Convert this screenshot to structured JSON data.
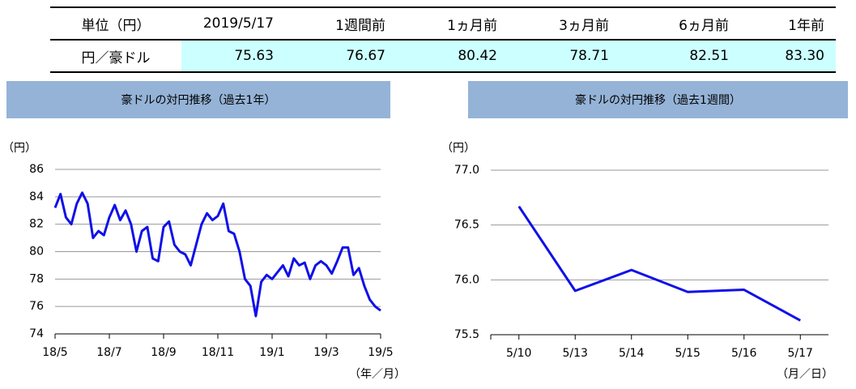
{
  "table": {
    "header": [
      "単位（円）",
      "2019/5/17",
      "1週間前",
      "1ヵ月前",
      "3ヵ月前",
      "6ヵ月前",
      "1年前"
    ],
    "rows": [
      [
        "円／豪ドル",
        "75.63",
        "76.67",
        "80.42",
        "78.71",
        "82.51",
        "83.30"
      ]
    ]
  },
  "chart_data": [
    {
      "type": "line",
      "title": "豪ドルの対円推移（過去1年）",
      "y_label": "（円）",
      "x_label": "（年／月）",
      "color": "#1010e8",
      "categories": [
        "18/5",
        null,
        null,
        null,
        null,
        null,
        null,
        null,
        null,
        null,
        "18/7",
        null,
        null,
        null,
        null,
        null,
        null,
        null,
        null,
        null,
        "18/9",
        null,
        null,
        null,
        null,
        null,
        null,
        null,
        null,
        null,
        "18/11",
        null,
        null,
        null,
        null,
        null,
        null,
        null,
        null,
        null,
        "19/1",
        null,
        null,
        null,
        null,
        null,
        null,
        null,
        null,
        null,
        "19/3",
        null,
        null,
        null,
        null,
        null,
        null,
        null,
        null,
        null,
        "19/5"
      ],
      "values": [
        83.2,
        84.2,
        82.5,
        82.0,
        83.5,
        84.3,
        83.5,
        81.0,
        81.5,
        81.2,
        82.5,
        83.4,
        82.3,
        83.0,
        82.0,
        80.0,
        81.5,
        81.8,
        79.5,
        79.3,
        81.8,
        82.2,
        80.5,
        80.0,
        79.8,
        79.0,
        80.5,
        82.0,
        82.8,
        82.3,
        82.6,
        83.5,
        81.5,
        81.3,
        80.0,
        78.0,
        77.5,
        75.3,
        77.8,
        78.3,
        78.0,
        78.5,
        79.0,
        78.2,
        79.5,
        79.0,
        79.2,
        78.0,
        79.0,
        79.3,
        79.0,
        78.4,
        79.3,
        80.3,
        80.3,
        78.3,
        78.8,
        77.5,
        76.5,
        76.0,
        75.7
      ],
      "ylim": [
        74,
        86
      ],
      "yticks": [
        74,
        76,
        78,
        80,
        82,
        84,
        86
      ],
      "grid": true
    },
    {
      "type": "line",
      "title": "豪ドルの対円推移（過去1週間）",
      "y_label": "（円）",
      "x_label": "（月／日）",
      "color": "#1010e8",
      "categories": [
        "5/10",
        "5/13",
        "5/14",
        "5/15",
        "5/16",
        "5/17"
      ],
      "values": [
        76.67,
        75.9,
        76.09,
        75.89,
        75.91,
        75.63
      ],
      "ylim": [
        75.5,
        77.0
      ],
      "yticks": [
        {
          "value": 75.5,
          "label": "75.5"
        },
        {
          "value": 76,
          "label": "76.0"
        },
        {
          "value": 76.5,
          "label": "76.5"
        },
        {
          "value": 77,
          "label": "77.0"
        }
      ],
      "grid": true
    }
  ]
}
